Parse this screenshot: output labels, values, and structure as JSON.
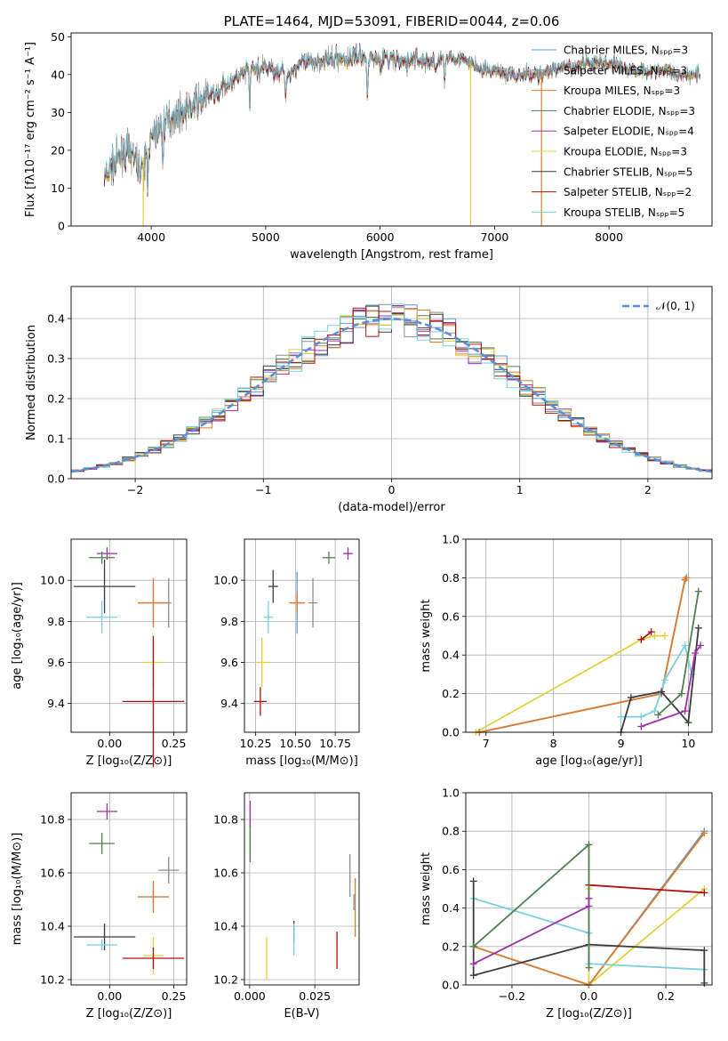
{
  "colors": {
    "cm": "#5b9bd5",
    "sm": "#8e8e8e",
    "km": "#e07b2a",
    "ce": "#4f7f4f",
    "se": "#9b30a8",
    "ke": "#e0d23c",
    "cs": "#3c3c3c",
    "ss": "#b01010",
    "ks": "#79d0e0"
  },
  "chart_data": [
    {
      "id": "spectrum",
      "type": "line",
      "title": "PLATE=1464, MJD=53091, FIBERID=0044, z=0.06",
      "xlabel": "wavelength [Angstrom, rest frame]",
      "ylabel": "Flux [fλ10⁻¹⁷ erg cm⁻² s⁻¹ A⁻¹]",
      "xlim": [
        3300,
        8900
      ],
      "ylim": [
        0,
        51
      ],
      "xticks": [
        4000,
        5000,
        6000,
        7000,
        8000
      ],
      "yticks": [
        0,
        10,
        20,
        30,
        40,
        50
      ],
      "legend_position": "upper right",
      "legend": [
        {
          "label": "Chabrier MILES, Nₛₚₚ=3",
          "color": "cm"
        },
        {
          "label": "Salpeter MILES, Nₛₚₚ=3",
          "color": "sm"
        },
        {
          "label": "Kroupa MILES, Nₛₚₚ=3",
          "color": "km"
        },
        {
          "label": "Chabrier ELODIE, Nₛₚₚ=3",
          "color": "ce"
        },
        {
          "label": "Salpeter ELODIE, Nₛₚₚ=4",
          "color": "se"
        },
        {
          "label": "Kroupa ELODIE, Nₛₚₚ=3",
          "color": "ke"
        },
        {
          "label": "Chabrier STELIB, Nₛₚₚ=5",
          "color": "cs"
        },
        {
          "label": "Salpeter STELIB, Nₛₚₚ=2",
          "color": "ss"
        },
        {
          "label": "Kroupa STELIB, Nₛₚₚ=5",
          "color": "ks"
        }
      ],
      "continuum": {
        "x": [
          3600,
          3700,
          3800,
          3900,
          4000,
          4100,
          4200,
          4300,
          4400,
          4500,
          4600,
          4700,
          4800,
          4900,
          5000,
          5100,
          5200,
          5300,
          5400,
          5500,
          5600,
          5700,
          5800,
          5900,
          6000,
          6100,
          6200,
          6300,
          6400,
          6500,
          6600,
          6700,
          6800,
          6900,
          7000,
          7100,
          7200,
          7300,
          7400,
          7500,
          7600,
          7700,
          7800,
          7900,
          8000,
          8100,
          8200,
          8300,
          8400,
          8500,
          8600,
          8700,
          8800
        ],
        "y": [
          13,
          17,
          20,
          16,
          23,
          27,
          29,
          30,
          33,
          34,
          36,
          38,
          40,
          41,
          42,
          41,
          40,
          43,
          43,
          44,
          44,
          44,
          45,
          44,
          44,
          44,
          43,
          44,
          43,
          43,
          45,
          44,
          43,
          41,
          41,
          40,
          40,
          40,
          40,
          41,
          42,
          42,
          43,
          43,
          43,
          42,
          41,
          41,
          41,
          41,
          40,
          40,
          40
        ]
      },
      "absorption_lines": [
        3934,
        3968,
        4102,
        4861,
        5175,
        5890,
        6563
      ],
      "spikes": [
        3930,
        6790,
        7410
      ]
    },
    {
      "id": "residuals",
      "type": "histogram",
      "xlabel": "(data-model)/error",
      "ylabel": "Normed distribution",
      "xlim": [
        -2.5,
        2.5
      ],
      "ylim": [
        0,
        0.48
      ],
      "xticks": [
        -2,
        -1,
        0,
        1,
        2
      ],
      "yticks": [
        0.0,
        0.1,
        0.2,
        0.3,
        0.4
      ],
      "bin_width": 0.1,
      "legend_position": "upper right",
      "reference_curve": {
        "label": "𝒩(0, 1)",
        "mean": 0,
        "sigma": 1,
        "color": "#5b8fd5"
      }
    },
    {
      "id": "age_vs_Z",
      "type": "scatter",
      "xlabel": "Z [log₁₀(Z/Z⊙)]",
      "ylabel": "age  [log₁₀(age/yr)]",
      "xlim": [
        -0.15,
        0.3
      ],
      "ylim": [
        9.26,
        10.2
      ],
      "xticks": [
        0.0,
        0.25
      ],
      "yticks": [
        9.4,
        9.6,
        9.8,
        10.0
      ],
      "points": [
        {
          "c": "se",
          "x": -0.01,
          "y": 10.13,
          "xerr": 0.04,
          "yerr": 0.03
        },
        {
          "c": "ce",
          "x": -0.03,
          "y": 10.11,
          "xerr": 0.05,
          "yerr": 0.03
        },
        {
          "c": "cs",
          "x": -0.02,
          "y": 9.97,
          "xerr": 0.12,
          "yerr": 0.13
        },
        {
          "c": "ks",
          "x": -0.03,
          "y": 9.82,
          "xerr": 0.06,
          "yerr": 0.08
        },
        {
          "c": "cm",
          "x": 0.17,
          "y": 9.89,
          "xerr": 0.06,
          "yerr": 0.1
        },
        {
          "c": "km",
          "x": 0.17,
          "y": 9.89,
          "xerr": 0.06,
          "yerr": 0.12
        },
        {
          "c": "sm",
          "x": 0.23,
          "y": 9.89,
          "xerr": 0.01,
          "yerr": 0.12
        },
        {
          "c": "ke",
          "x": 0.17,
          "y": 9.6,
          "xerr": 0.04,
          "yerr": 0.12
        },
        {
          "c": "ss",
          "x": 0.17,
          "y": 9.41,
          "xerr": 0.12,
          "yerr": 0.32
        }
      ]
    },
    {
      "id": "age_vs_mass",
      "type": "scatter",
      "xlabel": "mass [log₁₀(M/M⊙)]",
      "xlim": [
        10.18,
        10.9
      ],
      "ylim": [
        9.26,
        10.2
      ],
      "xticks": [
        10.25,
        10.5,
        10.75
      ],
      "yticks": [
        9.4,
        9.6,
        9.8,
        10.0
      ],
      "points": [
        {
          "c": "se",
          "x": 10.83,
          "y": 10.13,
          "xerr": 0.03,
          "yerr": 0.03
        },
        {
          "c": "ce",
          "x": 10.71,
          "y": 10.11,
          "xerr": 0.04,
          "yerr": 0.03
        },
        {
          "c": "cs",
          "x": 10.36,
          "y": 9.97,
          "xerr": 0.03,
          "yerr": 0.08
        },
        {
          "c": "ks",
          "x": 10.33,
          "y": 9.82,
          "xerr": 0.03,
          "yerr": 0.08
        },
        {
          "c": "cm",
          "x": 10.51,
          "y": 9.89,
          "xerr": 0.03,
          "yerr": 0.15
        },
        {
          "c": "km",
          "x": 10.51,
          "y": 9.89,
          "xerr": 0.05,
          "yerr": 0.05
        },
        {
          "c": "sm",
          "x": 10.61,
          "y": 9.89,
          "xerr": 0.03,
          "yerr": 0.12
        },
        {
          "c": "ke",
          "x": 10.29,
          "y": 9.6,
          "xerr": 0.04,
          "yerr": 0.12
        },
        {
          "c": "ss",
          "x": 10.28,
          "y": 9.41,
          "xerr": 0.04,
          "yerr": 0.07
        }
      ]
    },
    {
      "id": "massweight_vs_age",
      "type": "line",
      "xlabel": "age  [log₁₀(age/yr)]",
      "ylabel": "mass weight",
      "xlim": [
        6.7,
        10.35
      ],
      "ylim": [
        0,
        1
      ],
      "xticks": [
        7,
        8,
        9,
        10
      ],
      "yticks": [
        0.0,
        0.2,
        0.4,
        0.6,
        0.8,
        1.0
      ],
      "series": [
        {
          "c": "ke",
          "x": [
            6.85,
            9.3,
            9.5,
            9.65
          ],
          "y": [
            0,
            0.48,
            0.5,
            0.5
          ]
        },
        {
          "c": "cm",
          "x": [
            6.9,
            9.6,
            9.95,
            9.97
          ],
          "y": [
            0,
            0.2,
            0.79,
            0.8
          ]
        },
        {
          "c": "km",
          "x": [
            6.9,
            9.6,
            9.95,
            9.97
          ],
          "y": [
            0,
            0.2,
            0.79,
            0.8
          ]
        },
        {
          "c": "ss",
          "x": [
            9.3,
            9.45
          ],
          "y": [
            0.48,
            0.52
          ]
        },
        {
          "c": "ks",
          "x": [
            9.0,
            9.3,
            9.5,
            9.65,
            9.95,
            10.05
          ],
          "y": [
            0.08,
            0.08,
            0.11,
            0.27,
            0.45,
            0.3
          ]
        },
        {
          "c": "cs",
          "x": [
            9.0,
            9.15,
            9.6,
            10.0,
            10.15
          ],
          "y": [
            0,
            0.18,
            0.21,
            0.05,
            0.54
          ]
        },
        {
          "c": "ce",
          "x": [
            9.55,
            9.9,
            10.15
          ],
          "y": [
            0.09,
            0.2,
            0.73
          ]
        },
        {
          "c": "se",
          "x": [
            9.3,
            9.95,
            10.1,
            10.18
          ],
          "y": [
            0.03,
            0.11,
            0.41,
            0.45
          ]
        }
      ]
    },
    {
      "id": "mass_vs_Z",
      "type": "scatter",
      "xlabel": "Z [log₁₀(Z/Z⊙)]",
      "ylabel": "mass [log₁₀(M/M⊙)]",
      "xlim": [
        -0.15,
        0.3
      ],
      "ylim": [
        10.18,
        10.9
      ],
      "xticks": [
        0.0,
        0.25
      ],
      "yticks": [
        10.2,
        10.4,
        10.6,
        10.8
      ],
      "points": [
        {
          "c": "se",
          "x": -0.01,
          "y": 10.83,
          "xerr": 0.04,
          "yerr": 0.03
        },
        {
          "c": "ce",
          "x": -0.03,
          "y": 10.71,
          "xerr": 0.05,
          "yerr": 0.04
        },
        {
          "c": "sm",
          "x": 0.23,
          "y": 10.61,
          "xerr": 0.04,
          "yerr": 0.05
        },
        {
          "c": "cm",
          "x": 0.17,
          "y": 10.51,
          "xerr": 0.06,
          "yerr": 0.03
        },
        {
          "c": "km",
          "x": 0.17,
          "y": 10.51,
          "xerr": 0.06,
          "yerr": 0.06
        },
        {
          "c": "cs",
          "x": -0.02,
          "y": 10.36,
          "xerr": 0.12,
          "yerr": 0.05
        },
        {
          "c": "ks",
          "x": -0.03,
          "y": 10.33,
          "xerr": 0.06,
          "yerr": 0.02
        },
        {
          "c": "ke",
          "x": 0.17,
          "y": 10.29,
          "xerr": 0.04,
          "yerr": 0.07
        },
        {
          "c": "ss",
          "x": 0.17,
          "y": 10.28,
          "xerr": 0.12,
          "yerr": 0.04
        }
      ]
    },
    {
      "id": "mass_vs_EBV",
      "type": "scatter",
      "xlabel": "E(B-V)",
      "xlim": [
        -0.002,
        0.042
      ],
      "ylim": [
        10.18,
        10.9
      ],
      "xticks": [
        0.0,
        0.025
      ],
      "xticklabels": [
        "0.000",
        "0.025"
      ],
      "yticks": [
        10.2,
        10.4,
        10.6,
        10.8
      ],
      "points": [
        {
          "c": "se",
          "x": 0.0002,
          "y": 10.82,
          "xerr": 0,
          "yerr": 0.05
        },
        {
          "c": "ce",
          "x": 0.0002,
          "y": 10.71,
          "xerr": 0,
          "yerr": 0.07
        },
        {
          "c": "sm",
          "x": 0.0385,
          "y": 10.59,
          "xerr": 0,
          "yerr": 0.08
        },
        {
          "c": "km",
          "x": 0.0405,
          "y": 10.47,
          "xerr": 0,
          "yerr": 0.11
        },
        {
          "c": "cm",
          "x": 0.04,
          "y": 10.49,
          "xerr": 0,
          "yerr": 0.03
        },
        {
          "c": "cs",
          "x": 0.017,
          "y": 10.38,
          "xerr": 0,
          "yerr": 0.04
        },
        {
          "c": "ks",
          "x": 0.017,
          "y": 10.35,
          "xerr": 0,
          "yerr": 0.06
        },
        {
          "c": "ke",
          "x": 0.0065,
          "y": 10.28,
          "xerr": 0,
          "yerr": 0.08
        },
        {
          "c": "ss",
          "x": 0.0335,
          "y": 10.31,
          "xerr": 0,
          "yerr": 0.07
        }
      ]
    },
    {
      "id": "massweight_vs_Z",
      "type": "line",
      "xlabel": "Z [log₁₀(Z/Z⊙)]",
      "ylabel": "mass weight",
      "xlim": [
        -0.32,
        0.32
      ],
      "ylim": [
        0,
        1
      ],
      "xticks": [
        -0.2,
        0.0,
        0.2
      ],
      "yticks": [
        0.0,
        0.2,
        0.4,
        0.6,
        0.8,
        1.0
      ],
      "series": [
        {
          "c": "ke",
          "x": [
            0.0,
            0.0,
            0.3
          ],
          "y": [
            0.5,
            0.0,
            0.5
          ]
        },
        {
          "c": "cm",
          "x": [
            -0.3,
            0.0,
            0.3
          ],
          "y": [
            0.2,
            0.0,
            0.8
          ]
        },
        {
          "c": "km",
          "x": [
            -0.3,
            0.0,
            0.3
          ],
          "y": [
            0.2,
            0.0,
            0.79
          ]
        },
        {
          "c": "ss",
          "x": [
            0.0,
            0.3
          ],
          "y": [
            0.52,
            0.48
          ]
        },
        {
          "c": "ks",
          "x": [
            -0.3,
            0.0,
            0.0,
            0.3
          ],
          "y": [
            0.45,
            0.27,
            0.11,
            0.08
          ]
        },
        {
          "c": "cs",
          "x": [
            -0.3,
            -0.3,
            0.0,
            0.3,
            0.3
          ],
          "y": [
            0.54,
            0.05,
            0.21,
            0.18,
            0.01
          ]
        },
        {
          "c": "ce",
          "x": [
            -0.3,
            0.0,
            0.0
          ],
          "y": [
            0.2,
            0.73,
            0.09
          ]
        },
        {
          "c": "se",
          "x": [
            -0.3,
            0.0,
            0.0
          ],
          "y": [
            0.11,
            0.41,
            0.45
          ]
        }
      ]
    }
  ]
}
